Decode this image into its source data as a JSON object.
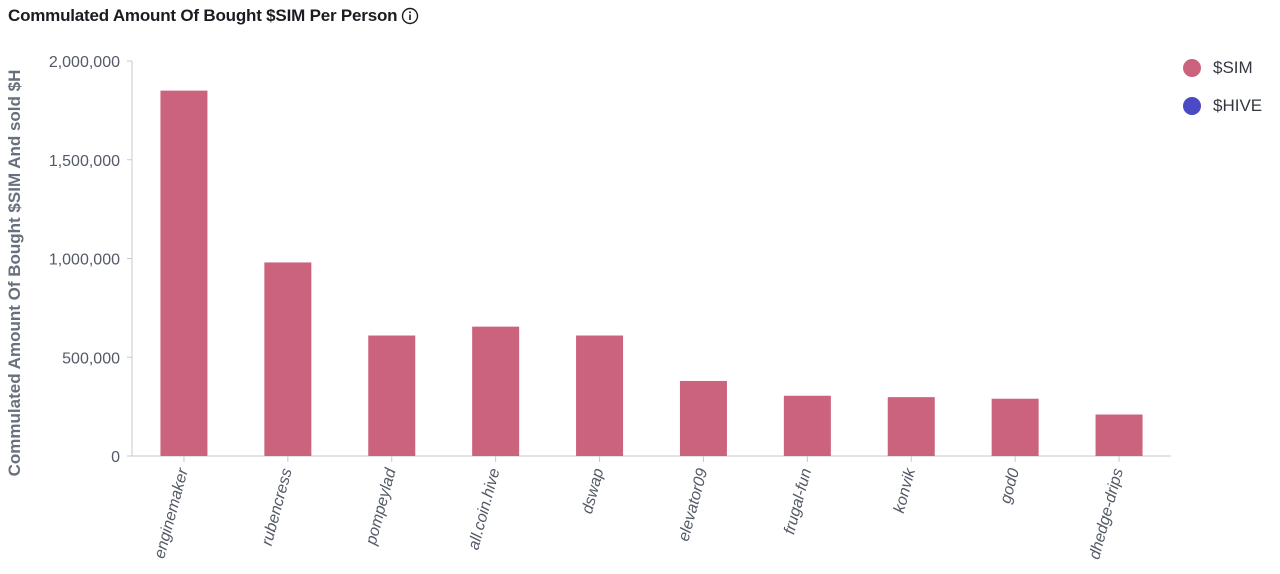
{
  "header": {
    "title": "Commulated Amount Of Bought $SIM Per Person",
    "info_icon": "info-circle-icon"
  },
  "colors": {
    "sim": "#cc637d",
    "hive": "#4a4ac4",
    "axis": "#c5c8d0",
    "text": "#535966"
  },
  "chart_data": {
    "type": "bar",
    "title": "Commulated Amount Of Bought $SIM Per Person",
    "ylabel": "Commulated Amount Of Bought $SIM And sold $H",
    "xlabel": "",
    "ylim": [
      0,
      2000000
    ],
    "yticks": [
      0,
      500000,
      1000000,
      1500000,
      2000000
    ],
    "ytick_labels": [
      "0",
      "500,000",
      "1,000,000",
      "1,500,000",
      "2,000,000"
    ],
    "categories": [
      "enginemaker",
      "rubencress",
      "pompeylad",
      "all.coin.hive",
      "dswap",
      "elevator09",
      "frugal-fun",
      "konvik",
      "god0",
      "dhedge-drips"
    ],
    "series": [
      {
        "name": "$SIM",
        "color": "#cc637d",
        "values": [
          1850000,
          980000,
          610000,
          655000,
          610000,
          380000,
          305000,
          298000,
          290000,
          210000
        ]
      },
      {
        "name": "$HIVE",
        "color": "#4a4ac4",
        "values": [
          0,
          0,
          0,
          0,
          0,
          0,
          0,
          0,
          0,
          0
        ]
      }
    ],
    "legend_position": "top-right",
    "grid": false
  },
  "legend": [
    {
      "label": "$SIM",
      "color": "#cc637d"
    },
    {
      "label": "$HIVE",
      "color": "#4a4ac4"
    }
  ]
}
